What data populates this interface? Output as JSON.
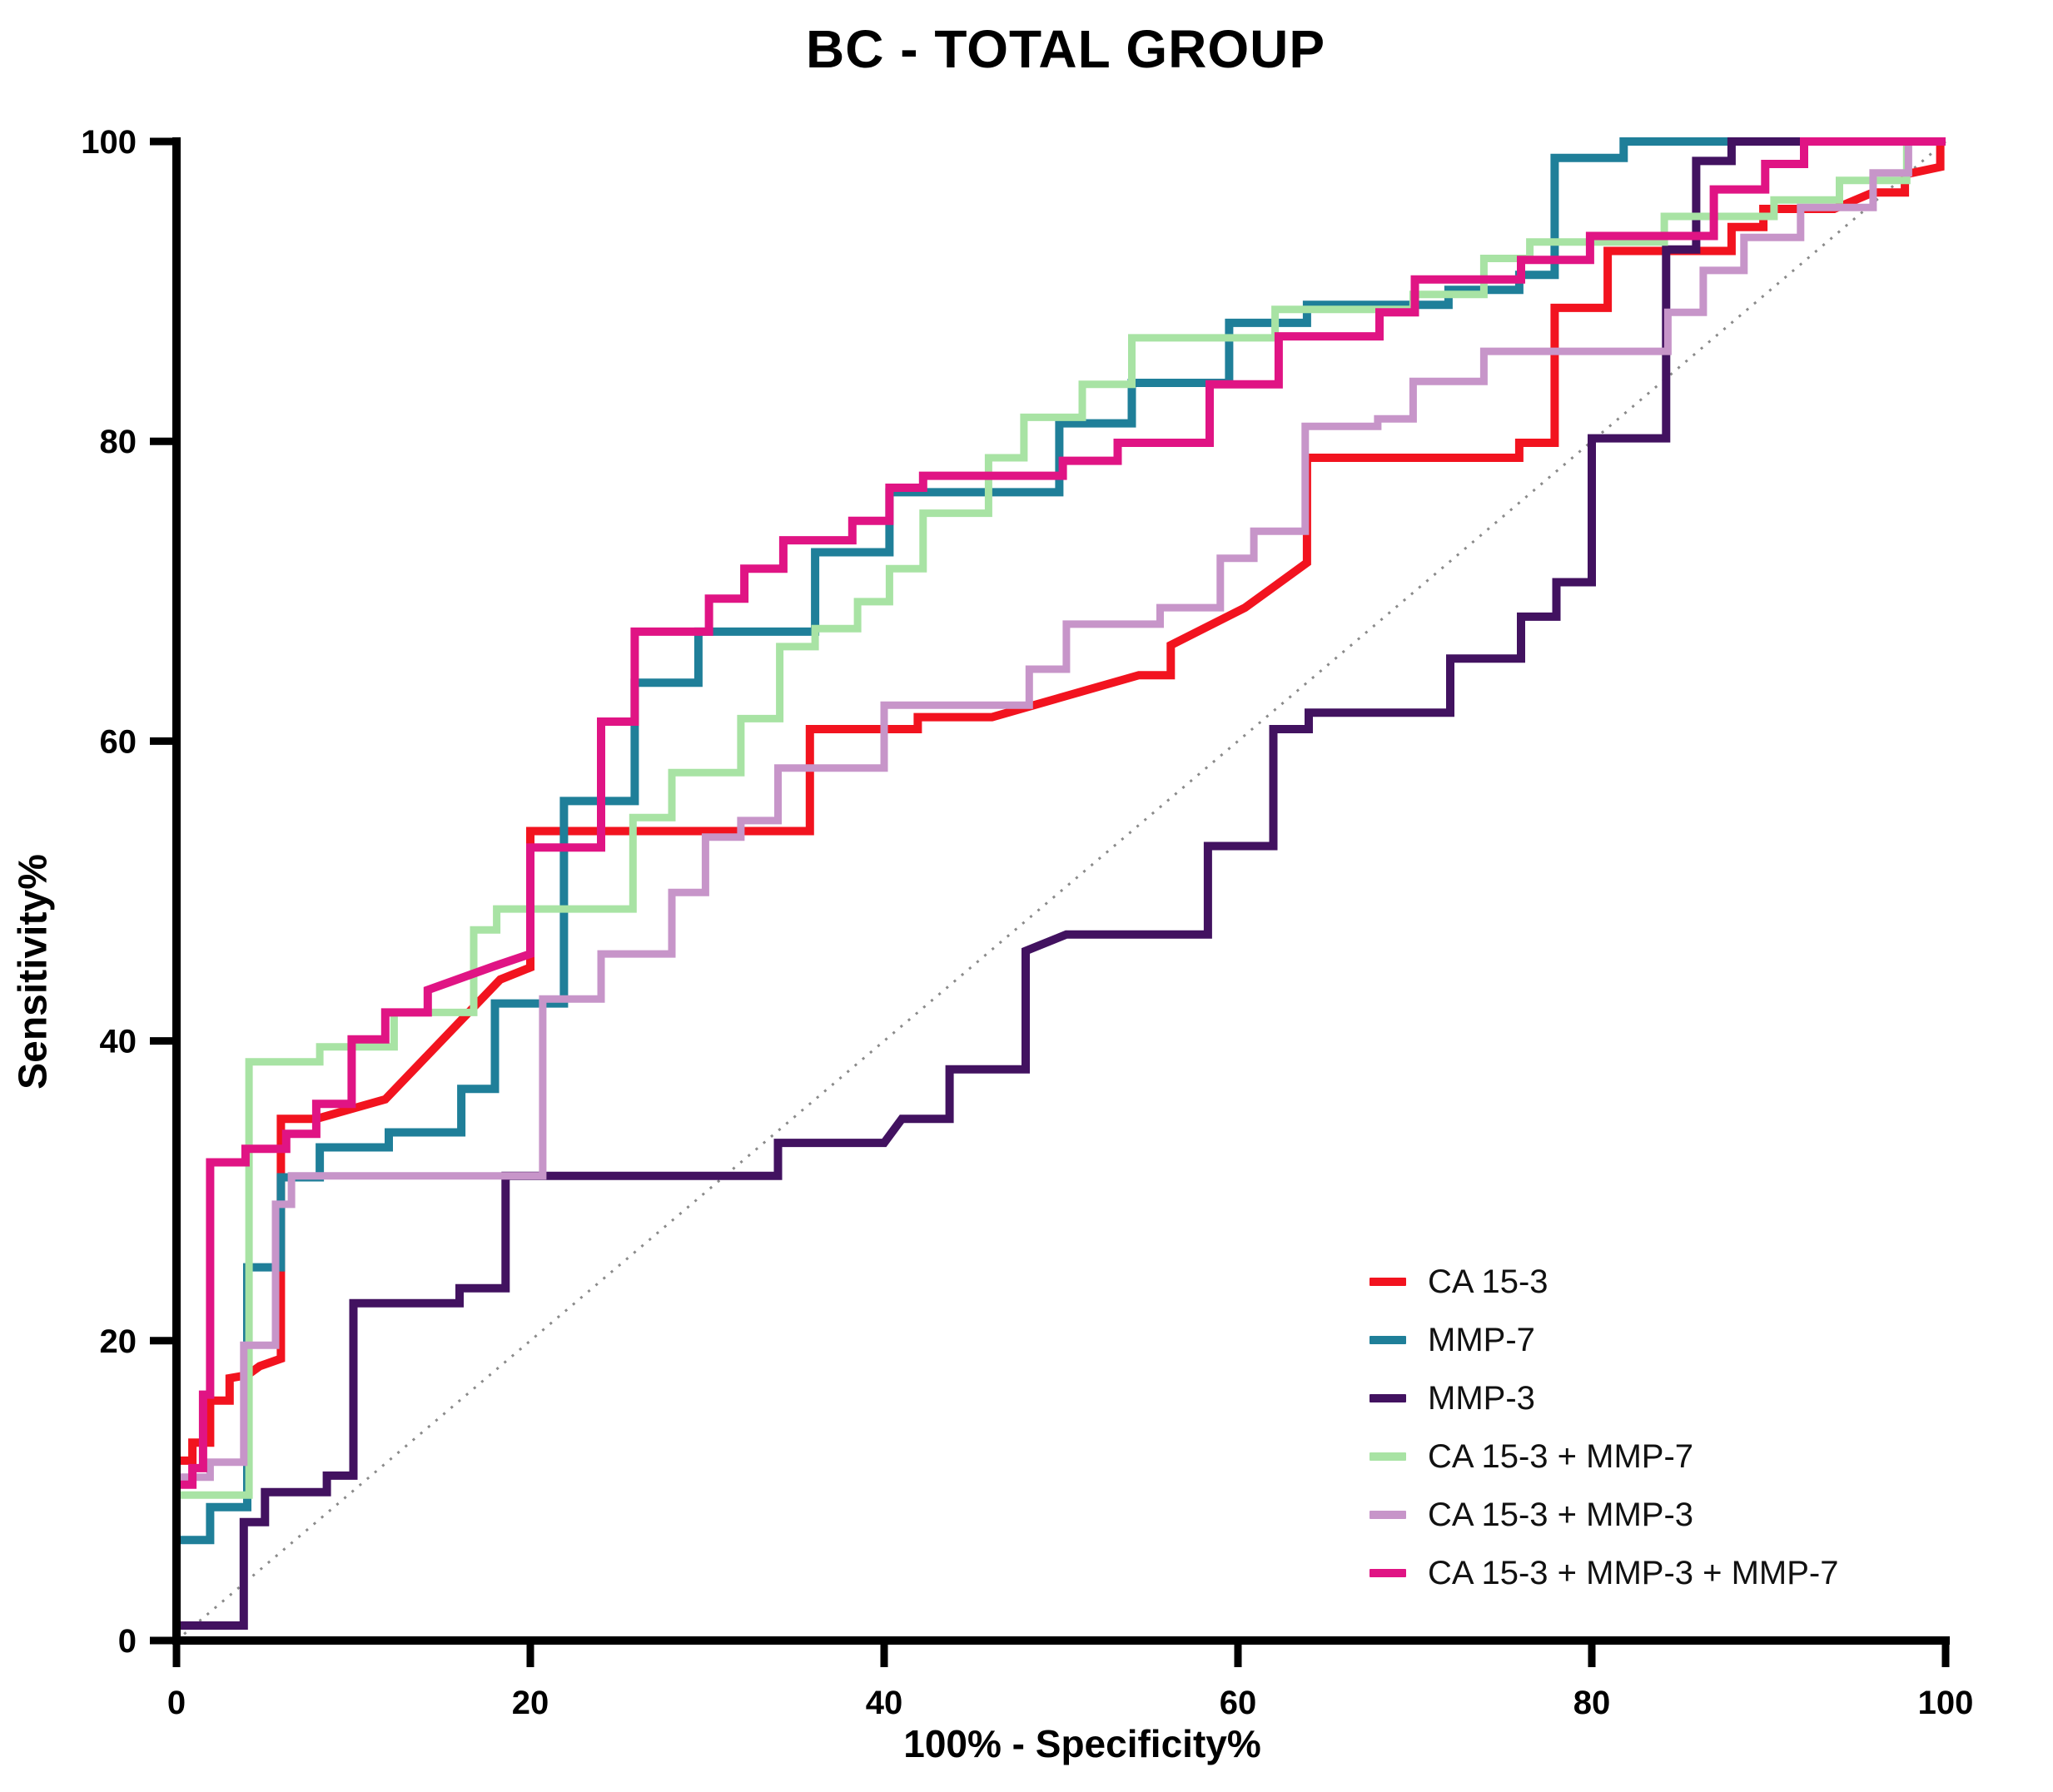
{
  "chart_data": {
    "type": "line",
    "subtype": "roc-step-curves",
    "title": "BC - TOTAL GROUP",
    "xlabel": "100% - Specificity%",
    "ylabel": "Sensitivity%",
    "xlim": [
      0,
      100
    ],
    "ylim": [
      0,
      100
    ],
    "xticks": [
      "0",
      "20",
      "40",
      "60",
      "80",
      "100"
    ],
    "yticks": [
      "0",
      "20",
      "40",
      "60",
      "80",
      "100"
    ],
    "grid": false,
    "legend_position": "inside-lower-right",
    "axis_color": "#000000",
    "reference_line": {
      "name": "chance-diagonal",
      "color": "#8a8a8a",
      "style": "dotted",
      "from": [
        0,
        0
      ],
      "to": [
        100,
        100
      ]
    },
    "series": [
      {
        "name": "CA 15-3",
        "color": "#f2131f",
        "width": 10,
        "points": [
          [
            0,
            0
          ],
          [
            0,
            12
          ],
          [
            0.9,
            12
          ],
          [
            0.9,
            13.2
          ],
          [
            1.9,
            13.2
          ],
          [
            1.9,
            16
          ],
          [
            3,
            16
          ],
          [
            3,
            17.5
          ],
          [
            4,
            17.7
          ],
          [
            4.7,
            18.3
          ],
          [
            5.9,
            18.8
          ],
          [
            5.9,
            34.8
          ],
          [
            7.9,
            34.8
          ],
          [
            11.8,
            36.1
          ],
          [
            18.3,
            44.1
          ],
          [
            20,
            44.9
          ],
          [
            20,
            54
          ],
          [
            35.8,
            54
          ],
          [
            35.8,
            60.8
          ],
          [
            41.9,
            60.8
          ],
          [
            41.9,
            61.6
          ],
          [
            46.1,
            61.6
          ],
          [
            54.4,
            64.4
          ],
          [
            56.2,
            64.4
          ],
          [
            56.2,
            66.4
          ],
          [
            60.4,
            68.9
          ],
          [
            63.9,
            71.9
          ],
          [
            63.9,
            78.9
          ],
          [
            75.9,
            78.9
          ],
          [
            75.9,
            79.9
          ],
          [
            77.9,
            79.9
          ],
          [
            77.9,
            88.9
          ],
          [
            80.9,
            88.9
          ],
          [
            80.9,
            92.7
          ],
          [
            87.9,
            92.7
          ],
          [
            87.9,
            94.3
          ],
          [
            89.7,
            94.3
          ],
          [
            89.7,
            95.5
          ],
          [
            93.7,
            95.5
          ],
          [
            95.9,
            96.6
          ],
          [
            97.7,
            96.6
          ],
          [
            97.7,
            97.8
          ],
          [
            99.7,
            98.3
          ],
          [
            99.7,
            100
          ],
          [
            100,
            100
          ]
        ]
      },
      {
        "name": "MMP-7",
        "color": "#1f7f99",
        "width": 10,
        "points": [
          [
            0,
            0
          ],
          [
            0,
            6.7
          ],
          [
            1.9,
            6.7
          ],
          [
            1.9,
            8.9
          ],
          [
            4,
            8.9
          ],
          [
            4,
            24.9
          ],
          [
            5.9,
            24.9
          ],
          [
            5.9,
            30.9
          ],
          [
            8.1,
            30.9
          ],
          [
            8.1,
            32.9
          ],
          [
            12,
            32.9
          ],
          [
            12,
            33.9
          ],
          [
            16.1,
            33.9
          ],
          [
            16.1,
            36.8
          ],
          [
            18,
            36.8
          ],
          [
            18,
            42.5
          ],
          [
            21.9,
            42.5
          ],
          [
            21.9,
            56
          ],
          [
            25.9,
            56
          ],
          [
            25.9,
            63.9
          ],
          [
            29.5,
            63.9
          ],
          [
            29.5,
            67.3
          ],
          [
            36.1,
            67.3
          ],
          [
            36.1,
            72.6
          ],
          [
            40.3,
            72.6
          ],
          [
            40.3,
            76.6
          ],
          [
            49.9,
            76.6
          ],
          [
            49.9,
            81.2
          ],
          [
            54,
            81.2
          ],
          [
            54,
            83.9
          ],
          [
            59.5,
            83.9
          ],
          [
            59.5,
            87.9
          ],
          [
            63.9,
            87.9
          ],
          [
            63.9,
            89.1
          ],
          [
            71.9,
            89.1
          ],
          [
            71.9,
            90.1
          ],
          [
            75.9,
            90.1
          ],
          [
            75.9,
            91.1
          ],
          [
            77.9,
            91.1
          ],
          [
            77.9,
            98.9
          ],
          [
            81.8,
            98.9
          ],
          [
            81.8,
            100
          ],
          [
            100,
            100
          ]
        ]
      },
      {
        "name": "MMP-3",
        "color": "#421260",
        "width": 10,
        "points": [
          [
            0,
            0
          ],
          [
            0,
            1
          ],
          [
            3.8,
            1
          ],
          [
            3.8,
            7.9
          ],
          [
            5,
            7.9
          ],
          [
            5,
            9.9
          ],
          [
            8.5,
            9.9
          ],
          [
            8.5,
            11
          ],
          [
            10,
            11
          ],
          [
            10,
            22.5
          ],
          [
            16,
            22.5
          ],
          [
            16,
            23.5
          ],
          [
            18.6,
            23.5
          ],
          [
            18.6,
            31
          ],
          [
            34,
            31
          ],
          [
            34,
            33.2
          ],
          [
            40,
            33.2
          ],
          [
            41,
            34.8
          ],
          [
            43.7,
            34.8
          ],
          [
            43.7,
            38.1
          ],
          [
            48,
            38.1
          ],
          [
            48,
            46
          ],
          [
            50.3,
            47.1
          ],
          [
            58.3,
            47.1
          ],
          [
            58.3,
            53
          ],
          [
            62,
            53
          ],
          [
            62,
            60.8
          ],
          [
            64,
            60.8
          ],
          [
            64,
            61.9
          ],
          [
            72,
            61.9
          ],
          [
            72,
            65.5
          ],
          [
            76,
            65.5
          ],
          [
            76,
            68.3
          ],
          [
            78,
            68.3
          ],
          [
            78,
            70.6
          ],
          [
            80,
            70.6
          ],
          [
            80,
            80.2
          ],
          [
            84.2,
            80.2
          ],
          [
            84.2,
            92.8
          ],
          [
            85.9,
            92.8
          ],
          [
            85.9,
            98.7
          ],
          [
            87.9,
            98.7
          ],
          [
            87.9,
            100
          ],
          [
            100,
            100
          ]
        ]
      },
      {
        "name": "CA 15-3 + MMP-7",
        "color": "#a8e3a4",
        "width": 9,
        "points": [
          [
            0,
            0
          ],
          [
            0,
            9.7
          ],
          [
            4.1,
            9.7
          ],
          [
            4.1,
            38.6
          ],
          [
            8.1,
            38.6
          ],
          [
            8.1,
            39.6
          ],
          [
            12.3,
            39.6
          ],
          [
            12.3,
            41.9
          ],
          [
            16.8,
            41.9
          ],
          [
            16.8,
            47.4
          ],
          [
            18.1,
            47.4
          ],
          [
            18.1,
            48.8
          ],
          [
            25.8,
            48.8
          ],
          [
            25.8,
            54.9
          ],
          [
            28,
            54.9
          ],
          [
            28,
            57.9
          ],
          [
            31.9,
            57.9
          ],
          [
            31.9,
            61.5
          ],
          [
            34.1,
            61.5
          ],
          [
            34.1,
            66.3
          ],
          [
            36.1,
            66.3
          ],
          [
            36.1,
            67.5
          ],
          [
            38.5,
            67.5
          ],
          [
            38.5,
            69.3
          ],
          [
            40.3,
            69.3
          ],
          [
            40.3,
            71.5
          ],
          [
            42.2,
            71.5
          ],
          [
            42.2,
            75.2
          ],
          [
            45.9,
            75.2
          ],
          [
            45.9,
            78.9
          ],
          [
            47.9,
            78.9
          ],
          [
            47.9,
            81.6
          ],
          [
            51.2,
            81.6
          ],
          [
            51.2,
            83.8
          ],
          [
            54,
            83.8
          ],
          [
            54,
            86.9
          ],
          [
            62.1,
            86.9
          ],
          [
            62.1,
            88.8
          ],
          [
            69.9,
            88.8
          ],
          [
            69.9,
            89.8
          ],
          [
            73.9,
            89.8
          ],
          [
            73.9,
            92.2
          ],
          [
            76.5,
            92.2
          ],
          [
            76.5,
            93.3
          ],
          [
            84.1,
            93.3
          ],
          [
            84.1,
            95
          ],
          [
            90.3,
            95
          ],
          [
            90.3,
            96.1
          ],
          [
            94,
            96.1
          ],
          [
            94,
            97.4
          ],
          [
            97.8,
            97.4
          ],
          [
            97.8,
            100
          ],
          [
            100,
            100
          ]
        ]
      },
      {
        "name": "CA 15-3 + MMP-3",
        "color": "#c795c9",
        "width": 9,
        "points": [
          [
            0,
            0
          ],
          [
            0,
            10.9
          ],
          [
            1.9,
            10.9
          ],
          [
            1.9,
            11.9
          ],
          [
            3.8,
            11.9
          ],
          [
            3.8,
            19.7
          ],
          [
            5.6,
            19.7
          ],
          [
            5.6,
            29.1
          ],
          [
            6.5,
            29.1
          ],
          [
            6.5,
            31
          ],
          [
            20.7,
            31
          ],
          [
            20.7,
            42.8
          ],
          [
            24,
            42.8
          ],
          [
            24,
            45.8
          ],
          [
            28,
            45.8
          ],
          [
            28,
            49.9
          ],
          [
            29.9,
            49.9
          ],
          [
            29.9,
            53.6
          ],
          [
            31.9,
            53.6
          ],
          [
            31.9,
            54.7
          ],
          [
            34,
            54.7
          ],
          [
            34,
            58.2
          ],
          [
            40,
            58.2
          ],
          [
            40,
            62.4
          ],
          [
            48.2,
            62.4
          ],
          [
            48.2,
            64.8
          ],
          [
            50.3,
            64.8
          ],
          [
            50.3,
            67.8
          ],
          [
            55.6,
            67.8
          ],
          [
            55.6,
            68.9
          ],
          [
            59,
            68.9
          ],
          [
            59,
            72.2
          ],
          [
            60.9,
            72.2
          ],
          [
            60.9,
            74
          ],
          [
            63.8,
            74
          ],
          [
            63.8,
            81
          ],
          [
            67.9,
            81
          ],
          [
            67.9,
            81.5
          ],
          [
            69.9,
            81.5
          ],
          [
            69.9,
            84
          ],
          [
            73.9,
            84
          ],
          [
            73.9,
            86
          ],
          [
            84.3,
            86
          ],
          [
            84.3,
            88.6
          ],
          [
            86.3,
            88.6
          ],
          [
            86.3,
            91.4
          ],
          [
            88.6,
            91.4
          ],
          [
            88.6,
            93.6
          ],
          [
            91.8,
            93.6
          ],
          [
            91.8,
            95.6
          ],
          [
            95.9,
            95.6
          ],
          [
            95.9,
            97.9
          ],
          [
            97.9,
            97.9
          ],
          [
            97.9,
            100
          ],
          [
            100,
            100
          ]
        ]
      },
      {
        "name": "CA 15-3 + MMP-3 + MMP-7",
        "color": "#e01484",
        "width": 10,
        "points": [
          [
            0,
            0
          ],
          [
            0,
            10.4
          ],
          [
            0.9,
            10.4
          ],
          [
            0.9,
            11.5
          ],
          [
            1.5,
            11.5
          ],
          [
            1.5,
            16.4
          ],
          [
            1.9,
            16.4
          ],
          [
            1.9,
            31.9
          ],
          [
            3.9,
            31.9
          ],
          [
            3.9,
            32.8
          ],
          [
            6.2,
            32.8
          ],
          [
            6.2,
            33.8
          ],
          [
            7.9,
            33.8
          ],
          [
            7.9,
            35.8
          ],
          [
            9.9,
            35.8
          ],
          [
            9.9,
            40.1
          ],
          [
            11.8,
            40.1
          ],
          [
            11.8,
            41.9
          ],
          [
            14.2,
            41.9
          ],
          [
            14.2,
            43.4
          ],
          [
            18,
            45
          ],
          [
            20,
            45.8
          ],
          [
            20,
            52.9
          ],
          [
            24,
            52.9
          ],
          [
            24,
            61.3
          ],
          [
            25.9,
            61.3
          ],
          [
            25.9,
            67.3
          ],
          [
            30.1,
            67.3
          ],
          [
            30.1,
            69.5
          ],
          [
            32.1,
            69.5
          ],
          [
            32.1,
            71.5
          ],
          [
            34.3,
            71.5
          ],
          [
            34.3,
            73.4
          ],
          [
            38.2,
            73.4
          ],
          [
            38.2,
            74.7
          ],
          [
            40.3,
            74.7
          ],
          [
            40.3,
            76.9
          ],
          [
            42.2,
            76.9
          ],
          [
            42.2,
            77.7
          ],
          [
            50.1,
            77.7
          ],
          [
            50.1,
            78.7
          ],
          [
            53.2,
            78.7
          ],
          [
            53.2,
            79.9
          ],
          [
            58.4,
            79.9
          ],
          [
            58.4,
            83.8
          ],
          [
            62.3,
            83.8
          ],
          [
            62.3,
            87
          ],
          [
            68,
            87
          ],
          [
            68,
            88.6
          ],
          [
            70,
            88.6
          ],
          [
            70,
            90.8
          ],
          [
            76,
            90.8
          ],
          [
            76,
            92.1
          ],
          [
            79.9,
            92.1
          ],
          [
            79.9,
            93.7
          ],
          [
            86.9,
            93.7
          ],
          [
            86.9,
            96.8
          ],
          [
            89.8,
            96.8
          ],
          [
            89.8,
            98.5
          ],
          [
            92,
            98.5
          ],
          [
            92,
            100
          ],
          [
            100,
            100
          ]
        ]
      }
    ]
  }
}
